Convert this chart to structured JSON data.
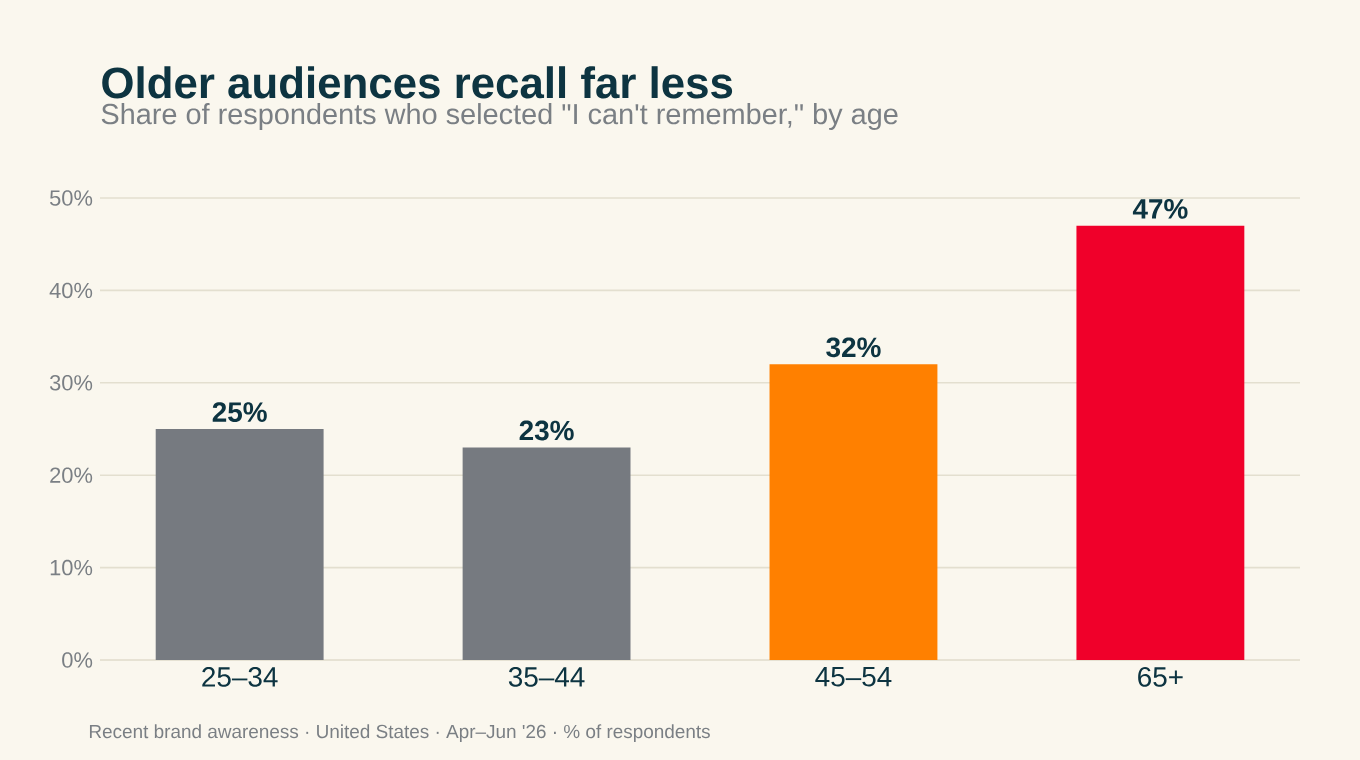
{
  "chart_data": {
    "type": "bar",
    "title": "Older audiences recall far less",
    "subtitle": "Share of respondents who selected \"I can't remember,\" by age",
    "categories": [
      "25–34",
      "35–44",
      "45–54",
      "65+"
    ],
    "values": [
      25,
      23,
      32,
      47
    ],
    "colors": [
      "#767a80",
      "#767a80",
      "#ff8000",
      "#f0002a"
    ],
    "value_labels": [
      "25%",
      "23%",
      "32%",
      "47%"
    ],
    "ylim": [
      0,
      50
    ],
    "yticks": [
      {
        "value": 0,
        "label": "0%"
      },
      {
        "value": 10,
        "label": "10%"
      },
      {
        "value": 20,
        "label": "20%"
      },
      {
        "value": 30,
        "label": "30%"
      },
      {
        "value": 40,
        "label": "40%"
      },
      {
        "value": 50,
        "label": "50%"
      }
    ],
    "grid": "y",
    "annotations": [
      "Recent brand awareness · United States · Apr–Jun '26 · % of respondents"
    ]
  }
}
